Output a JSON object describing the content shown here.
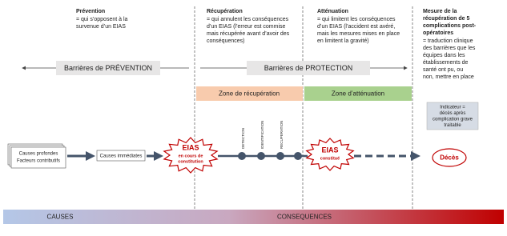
{
  "columns": [
    {
      "title": "Prévention",
      "text": [
        "= qui s’opposent à la",
        "survenue d’un EIAS"
      ]
    },
    {
      "title": "Récupération",
      "text": [
        "= qui annulent les conséquences",
        "d’un EIAS (l’erreur est commise",
        "mais récupérée avant d’avoir des",
        "conséquences)"
      ]
    },
    {
      "title": "Atténuation",
      "text": [
        "= qui limitent les conséquences",
        "d’un EIAS (l’accident est avéré,",
        "mais les mesures mises en place",
        "en limitent la gravité)"
      ]
    },
    {
      "title": [
        "Mesure de la",
        "récupération de 5",
        "complications post-",
        "opératoires"
      ],
      "text": [
        "= traduction clinique",
        "des barrières que les",
        "équipes dans les",
        "établissements de",
        "santé ont pu, ou",
        "non, mettre en place"
      ]
    }
  ],
  "barriers": [
    "Barrières de PRÉVENTION",
    "Barrières de PROTECTION"
  ],
  "zones": [
    "Zone de récupération",
    "Zone d’atténuation"
  ],
  "indicator": [
    "Indicateur =",
    "décès après",
    "complication grave",
    "traitable"
  ],
  "flow": {
    "root_causes": [
      "Causes profondes",
      "Facteurs contributifs"
    ],
    "immediate": "Causes immédiates",
    "eias_1": {
      "title": "EIAS",
      "sub": [
        "en cours de",
        "constitution"
      ]
    },
    "steps": [
      "DETECTION",
      "IDENTIFICATION",
      "RECUPERATION"
    ],
    "eias_2": {
      "title": "EIAS",
      "sub": [
        "constitué"
      ]
    },
    "outcome": "Décès"
  },
  "bottom": [
    "CAUSES",
    "CONSEQUENCES"
  ]
}
